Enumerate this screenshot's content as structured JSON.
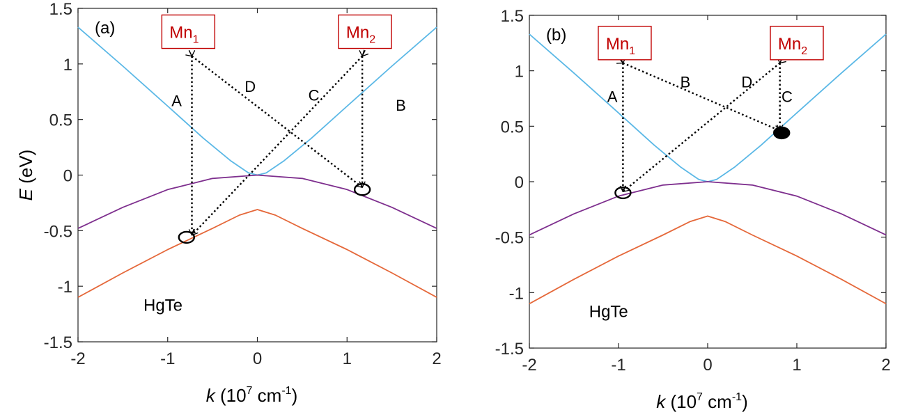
{
  "chart_data": [
    {
      "type": "line",
      "panel_label": "(a)",
      "ylabel_italic": "E",
      "ylabel_rest": " (eV)",
      "xlabel_italic": "k",
      "xlabel_base": " (10",
      "xlabel_exp": "7",
      "xlabel_unit": " cm",
      "xlabel_unit_exp": "-1",
      "xlabel_close": ")",
      "xlim": [
        -2,
        2
      ],
      "ylim": [
        -1.5,
        1.5
      ],
      "xticks": [
        -2,
        -1,
        0,
        1,
        2
      ],
      "xtick_labels": [
        "-2",
        "-1",
        "0",
        "1",
        "2"
      ],
      "yticks": [
        -1.5,
        -1,
        -0.5,
        0,
        0.5,
        1,
        1.5
      ],
      "ytick_labels": [
        "-1.5",
        "-1",
        "-0.5",
        "0",
        "0.5",
        "1",
        "1.5"
      ],
      "series": [
        {
          "color": "#5bb8e6",
          "x": [
            -2,
            -1.5,
            -1,
            -0.6,
            -0.3,
            -0.1,
            0,
            0.1,
            0.3,
            0.6,
            1,
            1.5,
            2
          ],
          "y": [
            1.33,
            0.98,
            0.62,
            0.33,
            0.13,
            0.02,
            0,
            0.02,
            0.13,
            0.33,
            0.62,
            0.98,
            1.33
          ]
        },
        {
          "color": "#7e2f8e",
          "x": [
            -2,
            -1.5,
            -1,
            -0.5,
            0,
            0.5,
            1,
            1.5,
            2
          ],
          "y": [
            -0.48,
            -0.29,
            -0.13,
            -0.03,
            0,
            -0.03,
            -0.13,
            -0.29,
            -0.48
          ]
        },
        {
          "color": "#e5683a",
          "x": [
            -2,
            -1.5,
            -1,
            -0.5,
            -0.2,
            0,
            0.2,
            0.5,
            1,
            1.5,
            2
          ],
          "y": [
            -1.1,
            -0.88,
            -0.67,
            -0.48,
            -0.36,
            -0.31,
            -0.36,
            -0.48,
            -0.67,
            -0.88,
            -1.1
          ]
        }
      ],
      "boxes": [
        {
          "base": "Mn",
          "sub": "1",
          "x": -0.77,
          "y": 1.29
        },
        {
          "base": "Mn",
          "sub": "2",
          "x": 1.2,
          "y": 1.29
        }
      ],
      "arrows": [
        {
          "label": "A",
          "from": [
            -0.73,
            1.07
          ],
          "to": [
            -0.73,
            -0.54
          ],
          "lx": -0.9,
          "ly": 0.62
        },
        {
          "label": "B",
          "from": [
            -0.73,
            1.07
          ],
          "to": [
            1.17,
            -0.11
          ],
          "lx": 1.6,
          "ly": 0.58
        },
        {
          "label": "C",
          "from": [
            1.17,
            1.07
          ],
          "to": [
            -0.73,
            -0.54
          ],
          "lx": 0.63,
          "ly": 0.67
        },
        {
          "label": "D",
          "from": [
            1.17,
            1.07
          ],
          "to": [
            1.17,
            -0.11
          ],
          "lx": -0.08,
          "ly": 0.75
        }
      ],
      "markers": [
        {
          "x": -0.79,
          "y": -0.56,
          "filled": false
        },
        {
          "x": 1.17,
          "y": -0.13,
          "filled": false
        }
      ],
      "annotation": {
        "text": "HgTe",
        "x": -1.27,
        "y": -1.22
      }
    },
    {
      "type": "line",
      "panel_label": "(b)",
      "ylabel_italic": "",
      "ylabel_rest": "",
      "xlabel_italic": "k",
      "xlabel_base": " (10",
      "xlabel_exp": "7",
      "xlabel_unit": " cm",
      "xlabel_unit_exp": "-1",
      "xlabel_close": ")",
      "xlim": [
        -2,
        2
      ],
      "ylim": [
        -1.5,
        1.5
      ],
      "xticks": [
        -2,
        -1,
        0,
        1,
        2
      ],
      "xtick_labels": [
        "-2",
        "-1",
        "0",
        "1",
        "2"
      ],
      "yticks": [
        -1.5,
        -1,
        -0.5,
        0,
        0.5,
        1,
        1.5
      ],
      "ytick_labels": [
        "-1.5",
        "-1",
        "-0.5",
        "0",
        "0.5",
        "1",
        "1.5"
      ],
      "series": [
        {
          "color": "#5bb8e6",
          "x": [
            -2,
            -1.5,
            -1,
            -0.6,
            -0.3,
            -0.1,
            0,
            0.1,
            0.3,
            0.6,
            1,
            1.5,
            2
          ],
          "y": [
            1.33,
            0.98,
            0.62,
            0.33,
            0.13,
            0.02,
            0,
            0.02,
            0.13,
            0.33,
            0.62,
            0.98,
            1.33
          ]
        },
        {
          "color": "#7e2f8e",
          "x": [
            -2,
            -1.5,
            -1,
            -0.5,
            0,
            0.5,
            1,
            1.5,
            2
          ],
          "y": [
            -0.48,
            -0.29,
            -0.13,
            -0.03,
            0,
            -0.03,
            -0.13,
            -0.29,
            -0.48
          ]
        },
        {
          "color": "#e5683a",
          "x": [
            -2,
            -1.5,
            -1,
            -0.5,
            -0.2,
            0,
            0.2,
            0.5,
            1,
            1.5,
            2
          ],
          "y": [
            -1.1,
            -0.88,
            -0.67,
            -0.48,
            -0.36,
            -0.31,
            -0.36,
            -0.48,
            -0.67,
            -0.88,
            -1.1
          ]
        }
      ],
      "boxes": [
        {
          "base": "Mn",
          "sub": "1",
          "x": -0.93,
          "y": 1.25
        },
        {
          "base": "Mn",
          "sub": "2",
          "x": 1.0,
          "y": 1.25
        }
      ],
      "arrows": [
        {
          "label": "A",
          "from": [
            -0.95,
            1.07
          ],
          "to": [
            -0.95,
            -0.09
          ],
          "lx": -1.07,
          "ly": 0.72
        },
        {
          "label": "B",
          "from": [
            -0.95,
            1.07
          ],
          "to": [
            0.81,
            0.46
          ],
          "lx": -0.25,
          "ly": 0.85
        },
        {
          "label": "C",
          "from": [
            0.81,
            1.07
          ],
          "to": [
            -0.95,
            -0.09
          ],
          "lx": 0.89,
          "ly": 0.72
        },
        {
          "label": "D",
          "from": [
            0.81,
            1.07
          ],
          "to": [
            0.81,
            0.46
          ],
          "lx": 0.44,
          "ly": 0.85
        }
      ],
      "markers": [
        {
          "x": -0.95,
          "y": -0.1,
          "filled": false
        },
        {
          "x": 0.83,
          "y": 0.44,
          "filled": true
        }
      ],
      "annotation": {
        "text": "HgTe",
        "x": -1.33,
        "y": -1.22
      }
    }
  ]
}
